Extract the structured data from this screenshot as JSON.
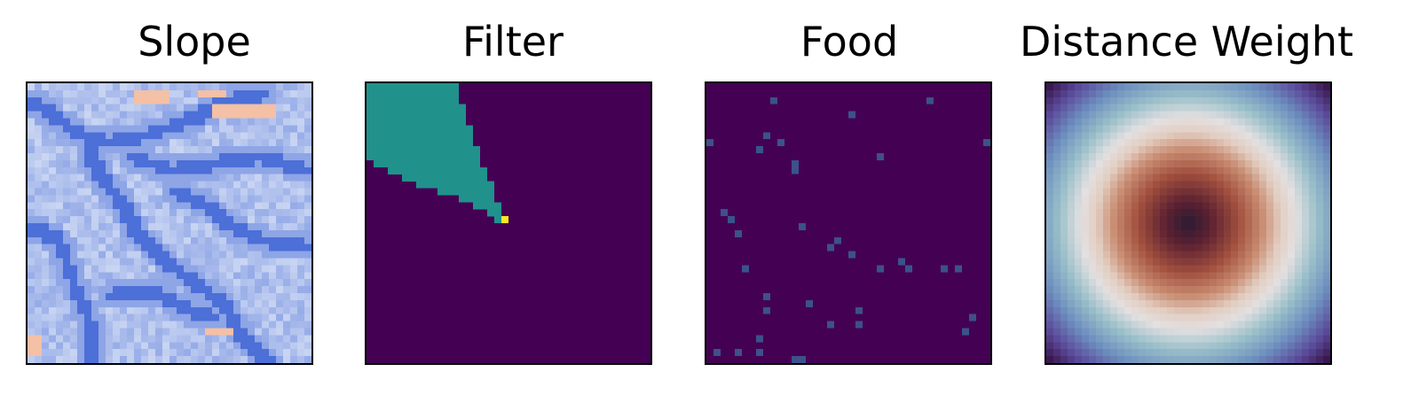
{
  "chart_data": [
    {
      "type": "heatmap",
      "title": "Slope",
      "colormap": "coolwarm",
      "grid_size": 40,
      "ticks": "none",
      "background_color": "#b7cff9",
      "ridge_color": "#4c6fd8",
      "warm_color": "#f4c0a6",
      "ridges": [
        {
          "points": [
            [
              0,
              2
            ],
            [
              3,
              4
            ],
            [
              7,
              7
            ],
            [
              11,
              8
            ],
            [
              16,
              7
            ],
            [
              22,
              5
            ],
            [
              28,
              2
            ],
            [
              33,
              1
            ]
          ]
        },
        {
          "points": [
            [
              8,
              9
            ],
            [
              10,
              13
            ],
            [
              13,
              17
            ],
            [
              15,
              21
            ],
            [
              19,
              25
            ],
            [
              23,
              28
            ],
            [
              27,
              31
            ],
            [
              30,
              36
            ],
            [
              34,
              40
            ]
          ]
        },
        {
          "points": [
            [
              0,
              20
            ],
            [
              4,
              22
            ],
            [
              6,
              28
            ],
            [
              8,
              33
            ],
            [
              9,
              40
            ]
          ]
        },
        {
          "points": [
            [
              14,
              10
            ],
            [
              20,
              12
            ],
            [
              26,
              11
            ],
            [
              32,
              10
            ],
            [
              39,
              12
            ]
          ]
        },
        {
          "points": [
            [
              20,
              15
            ],
            [
              25,
              17
            ],
            [
              28,
              20
            ],
            [
              33,
              22
            ],
            [
              39,
              23
            ]
          ]
        },
        {
          "points": [
            [
              11,
              30
            ],
            [
              17,
              29
            ],
            [
              22,
              32
            ],
            [
              26,
              33
            ]
          ]
        }
      ],
      "warm_patches": [
        {
          "x": 26,
          "y": 3,
          "w": 9,
          "h": 2
        },
        {
          "x": 15,
          "y": 1,
          "w": 5,
          "h": 2
        },
        {
          "x": 24,
          "y": 1,
          "w": 4,
          "h": 1
        },
        {
          "x": 25,
          "y": 35,
          "w": 4,
          "h": 1
        },
        {
          "x": 0,
          "y": 36,
          "w": 2,
          "h": 3
        }
      ]
    },
    {
      "type": "heatmap",
      "title": "Filter",
      "colormap": "viridis",
      "grid_size": 40,
      "ticks": "none",
      "background_color": "#440154",
      "region_color": "#21918c",
      "point_color": "#fde725",
      "region_rows": [
        {
          "y": 0,
          "x_start": 0,
          "x_end": 13
        },
        {
          "y": 1,
          "x_start": 0,
          "x_end": 13
        },
        {
          "y": 2,
          "x_start": 0,
          "x_end": 13
        },
        {
          "y": 3,
          "x_start": 0,
          "x_end": 14
        },
        {
          "y": 4,
          "x_start": 0,
          "x_end": 14
        },
        {
          "y": 5,
          "x_start": 0,
          "x_end": 14
        },
        {
          "y": 6,
          "x_start": 0,
          "x_end": 15
        },
        {
          "y": 7,
          "x_start": 0,
          "x_end": 15
        },
        {
          "y": 8,
          "x_start": 0,
          "x_end": 15
        },
        {
          "y": 9,
          "x_start": 0,
          "x_end": 16
        },
        {
          "y": 10,
          "x_start": 0,
          "x_end": 16
        },
        {
          "y": 11,
          "x_start": 1,
          "x_end": 16
        },
        {
          "y": 12,
          "x_start": 3,
          "x_end": 17
        },
        {
          "y": 13,
          "x_start": 5,
          "x_end": 17
        },
        {
          "y": 14,
          "x_start": 7,
          "x_end": 18
        },
        {
          "y": 15,
          "x_start": 10,
          "x_end": 18
        },
        {
          "y": 16,
          "x_start": 13,
          "x_end": 18
        },
        {
          "y": 17,
          "x_start": 15,
          "x_end": 19
        },
        {
          "y": 18,
          "x_start": 17,
          "x_end": 19
        },
        {
          "y": 19,
          "x_start": 18,
          "x_end": 19
        }
      ],
      "point": {
        "x": 19,
        "y": 19
      }
    },
    {
      "type": "heatmap",
      "title": "Food",
      "colormap": "viridis",
      "grid_size": 40,
      "ticks": "none",
      "background_color": "#440154",
      "cell_color": "#3b528b",
      "cells": [
        [
          9,
          2
        ],
        [
          20,
          4
        ],
        [
          31,
          2
        ],
        [
          8,
          7
        ],
        [
          10,
          8
        ],
        [
          0,
          8
        ],
        [
          39,
          8
        ],
        [
          7,
          9
        ],
        [
          12,
          11
        ],
        [
          24,
          10
        ],
        [
          12,
          12
        ],
        [
          2,
          18
        ],
        [
          3,
          19
        ],
        [
          13,
          20
        ],
        [
          4,
          21
        ],
        [
          18,
          22
        ],
        [
          17,
          23
        ],
        [
          20,
          24
        ],
        [
          27,
          25
        ],
        [
          24,
          26
        ],
        [
          5,
          26
        ],
        [
          35,
          26
        ],
        [
          28,
          26
        ],
        [
          33,
          26
        ],
        [
          8,
          30
        ],
        [
          14,
          31
        ],
        [
          8,
          32
        ],
        [
          21,
          32
        ],
        [
          37,
          33
        ],
        [
          21,
          34
        ],
        [
          36,
          35
        ],
        [
          7,
          36
        ],
        [
          17,
          34
        ],
        [
          1,
          38
        ],
        [
          4,
          38
        ],
        [
          7,
          38
        ],
        [
          12,
          39
        ],
        [
          13,
          39
        ]
      ]
    },
    {
      "type": "heatmap",
      "title": "Distance Weight",
      "colormap": "twilight_shifted",
      "grid_size": 40,
      "ticks": "none",
      "center": [
        19.5,
        19.5
      ],
      "color_stops": [
        {
          "t": 0.0,
          "color": "#2a1a33"
        },
        {
          "t": 0.12,
          "color": "#5e2232"
        },
        {
          "t": 0.26,
          "color": "#a2503e"
        },
        {
          "t": 0.38,
          "color": "#c98d73"
        },
        {
          "t": 0.47,
          "color": "#e2cdc0"
        },
        {
          "t": 0.55,
          "color": "#e3e0e1"
        },
        {
          "t": 0.66,
          "color": "#99bfc9"
        },
        {
          "t": 0.78,
          "color": "#6d8fbf"
        },
        {
          "t": 0.9,
          "color": "#5b4a9a"
        },
        {
          "t": 1.0,
          "color": "#3a1850"
        }
      ],
      "max_distance": 27.6
    }
  ]
}
